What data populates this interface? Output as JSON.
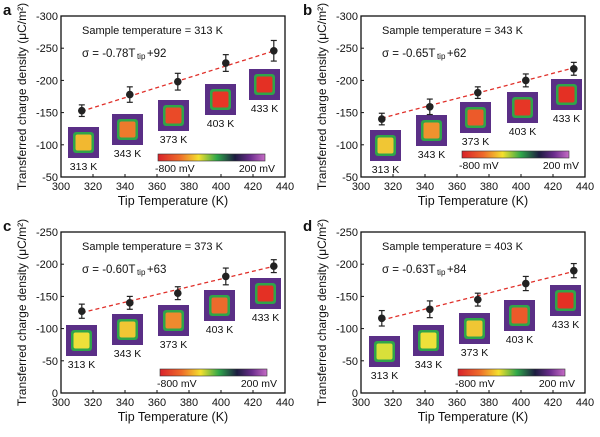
{
  "chart_data": [
    {
      "type": "scatter",
      "panel": "a",
      "xlabel": "Tip Temperature (K)",
      "ylabel": "Transferred charge density (μC/m²)",
      "xlim": [
        300,
        440
      ],
      "xticks": [
        300,
        320,
        340,
        360,
        380,
        400,
        420,
        440
      ],
      "ylim": [
        -300,
        -50
      ],
      "yticks": [
        -300,
        -250,
        -200,
        -150,
        -100,
        -50
      ],
      "annotation": "Sample temperature = 313 K",
      "equation": {
        "prefix": "σ = -0.78T",
        "sub": "tip",
        "suffix": "+92",
        "slope": -0.78,
        "intercept": 92
      },
      "x": [
        313,
        343,
        373,
        403,
        433
      ],
      "y": [
        -153,
        -178,
        -198,
        -227,
        -246
      ],
      "err": [
        9,
        12,
        13,
        13,
        16
      ],
      "insets": [
        {
          "label": "313 K",
          "color": "#f2b830"
        },
        {
          "label": "343 K",
          "color": "#ee7a2c"
        },
        {
          "label": "373 K",
          "color": "#ea4a28"
        },
        {
          "label": "403 K",
          "color": "#e63626"
        },
        {
          "label": "433 K",
          "color": "#e43024"
        }
      ],
      "colorbar": {
        "min_label": "-800 mV",
        "max_label": "200 mV"
      }
    },
    {
      "type": "scatter",
      "panel": "b",
      "xlabel": "Tip Temperature (K)",
      "ylabel": "Transferred charge density (μC/m²)",
      "xlim": [
        300,
        440
      ],
      "xticks": [
        300,
        320,
        340,
        360,
        380,
        400,
        420,
        440
      ],
      "ylim": [
        -300,
        -50
      ],
      "yticks": [
        -300,
        -250,
        -200,
        -150,
        -100,
        -50
      ],
      "annotation": "Sample temperature = 343 K",
      "equation": {
        "prefix": "σ = -0.65T",
        "sub": "tip",
        "suffix": "+62",
        "slope": -0.65,
        "intercept": 62
      },
      "x": [
        313,
        343,
        373,
        403,
        433
      ],
      "y": [
        -140,
        -159,
        -181,
        -200,
        -218
      ],
      "err": [
        9,
        12,
        9,
        10,
        10
      ],
      "insets": [
        {
          "label": "313 K",
          "color": "#f0c634"
        },
        {
          "label": "343 K",
          "color": "#f0922e"
        },
        {
          "label": "373 K",
          "color": "#ec5a2a"
        },
        {
          "label": "403 K",
          "color": "#e63626"
        },
        {
          "label": "433 K",
          "color": "#e43024"
        }
      ],
      "colorbar": {
        "min_label": "-800 mV",
        "max_label": "200 mV"
      }
    },
    {
      "type": "scatter",
      "panel": "c",
      "xlabel": "Tip Temperature (K)",
      "ylabel": "Transferred charge density (μC/m²)",
      "xlim": [
        300,
        440
      ],
      "xticks": [
        300,
        320,
        340,
        360,
        380,
        400,
        420,
        440
      ],
      "ylim": [
        -250,
        0
      ],
      "yticks": [
        -250,
        -200,
        -150,
        -100,
        -50,
        0
      ],
      "annotation": "Sample temperature = 373 K",
      "equation": {
        "prefix": "σ = -0.60T",
        "sub": "tip",
        "suffix": "+63",
        "slope": -0.6,
        "intercept": 63
      },
      "x": [
        313,
        343,
        373,
        403,
        433
      ],
      "y": [
        -127,
        -140,
        -155,
        -181,
        -197
      ],
      "err": [
        11,
        10,
        10,
        13,
        10
      ],
      "insets": [
        {
          "label": "313 K",
          "color": "#eee03a"
        },
        {
          "label": "343 K",
          "color": "#f0c634"
        },
        {
          "label": "373 K",
          "color": "#ee8a2e"
        },
        {
          "label": "403 K",
          "color": "#ec6a2c"
        },
        {
          "label": "433 K",
          "color": "#e43024"
        }
      ],
      "colorbar": {
        "min_label": "-800 mV",
        "max_label": "200 mV"
      }
    },
    {
      "type": "scatter",
      "panel": "d",
      "xlabel": "Tip Temperature (K)",
      "ylabel": "Transferred charge density (μC/m²)",
      "xlim": [
        300,
        440
      ],
      "xticks": [
        300,
        320,
        340,
        360,
        380,
        400,
        420,
        440
      ],
      "ylim": [
        -250,
        0
      ],
      "yticks": [
        -250,
        -200,
        -150,
        -100,
        -50,
        0
      ],
      "annotation": "Sample temperature = 403 K",
      "equation": {
        "prefix": "σ = -0.63T",
        "sub": "tip",
        "suffix": "+84",
        "slope": -0.63,
        "intercept": 84
      },
      "x": [
        313,
        343,
        373,
        403,
        433
      ],
      "y": [
        -116,
        -130,
        -145,
        -170,
        -190
      ],
      "err": [
        12,
        13,
        10,
        11,
        11
      ],
      "insets": [
        {
          "label": "313 K",
          "color": "#d8e03a"
        },
        {
          "label": "343 K",
          "color": "#eee03a"
        },
        {
          "label": "373 K",
          "color": "#f0c634"
        },
        {
          "label": "403 K",
          "color": "#ec5a2a"
        },
        {
          "label": "433 K",
          "color": "#e43024"
        }
      ],
      "colorbar": {
        "min_label": "-800 mV",
        "max_label": "200 mV"
      }
    }
  ],
  "colors": {
    "fit_line": "#e0302a",
    "points": "#222222",
    "inset_bg": "#5a2f86",
    "inset_ring": "#2fa54a"
  }
}
